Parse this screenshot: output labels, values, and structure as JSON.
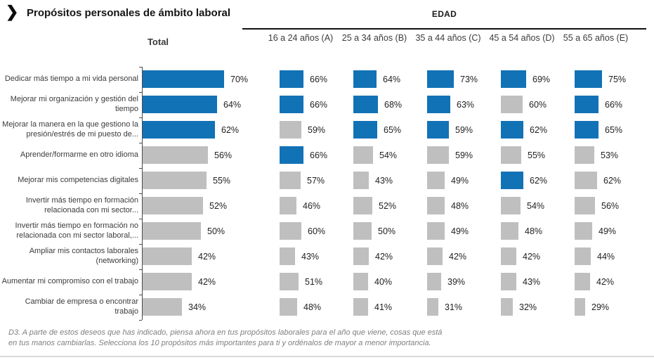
{
  "header": {
    "title": "Propósitos personales de ámbito laboral",
    "group_label": "EDAD",
    "chevron_icon": "❯"
  },
  "columns": {
    "total_label": "Total",
    "age_labels": [
      "16 a 24 años (A)",
      "25 a 34 años (B)",
      "35 a 44 años (C)",
      "45 a 54 años (D)",
      "55 a 65 años (E)"
    ]
  },
  "chart_data": {
    "type": "bar",
    "orientation": "horizontal",
    "title": "Propósitos personales de ámbito laboral",
    "unit": "%",
    "xlim": [
      0,
      100
    ],
    "value_labels": true,
    "legend_position": "none",
    "grid": false,
    "categories": [
      "Dedicar más tiempo a mi vida personal",
      "Mejorar mi organización y gestión del tiempo",
      "Mejorar la manera en la que gestiono la presión/estrés de mi puesto de...",
      "Aprender/formarme en otro idioma",
      "Mejorar mis competencias digitales",
      "Invertir más tiempo en formación relacionada con mi sector...",
      "Invertir más tiempo en formación no relacionada con mi sector laboral,...",
      "Ampliar mis contactos laborales (networking)",
      "Aumentar mi compromiso con el trabajo",
      "Cambiar de empresa o encontrar trabajo"
    ],
    "series": [
      {
        "name": "Total",
        "values": [
          70,
          64,
          62,
          56,
          55,
          52,
          50,
          42,
          42,
          34
        ],
        "highlighted": [
          true,
          true,
          true,
          false,
          false,
          false,
          false,
          false,
          false,
          false
        ]
      },
      {
        "name": "16 a 24 años (A)",
        "values": [
          66,
          66,
          59,
          66,
          57,
          46,
          60,
          43,
          51,
          48
        ],
        "highlighted": [
          true,
          true,
          false,
          true,
          false,
          false,
          false,
          false,
          false,
          false
        ]
      },
      {
        "name": "25 a 34 años (B)",
        "values": [
          64,
          68,
          65,
          54,
          43,
          52,
          50,
          42,
          40,
          41
        ],
        "highlighted": [
          true,
          true,
          true,
          false,
          false,
          false,
          false,
          false,
          false,
          false
        ]
      },
      {
        "name": "35 a 44 años (C)",
        "values": [
          73,
          63,
          59,
          59,
          49,
          48,
          49,
          42,
          39,
          31
        ],
        "highlighted": [
          true,
          true,
          true,
          false,
          false,
          false,
          false,
          false,
          false,
          false
        ]
      },
      {
        "name": "45 a 54 años (D)",
        "values": [
          69,
          60,
          62,
          55,
          62,
          54,
          48,
          42,
          43,
          32
        ],
        "highlighted": [
          true,
          false,
          true,
          false,
          true,
          false,
          false,
          false,
          false,
          false
        ]
      },
      {
        "name": "55 a 65 años (E)",
        "values": [
          75,
          66,
          65,
          53,
          62,
          56,
          49,
          44,
          42,
          29
        ],
        "highlighted": [
          true,
          true,
          true,
          false,
          false,
          false,
          false,
          false,
          false,
          false
        ]
      }
    ]
  },
  "colors": {
    "highlight": "#1272B6",
    "muted": "#BFBFBF"
  },
  "footnote": "D3. A parte de estos deseos que has indicado, piensa ahora en tus propósitos laborales para el año que viene, cosas que está en tus manos cambiarlas. Selecciona los 10 propósitos más importantes para ti y ordénalos de mayor a menor importancia."
}
